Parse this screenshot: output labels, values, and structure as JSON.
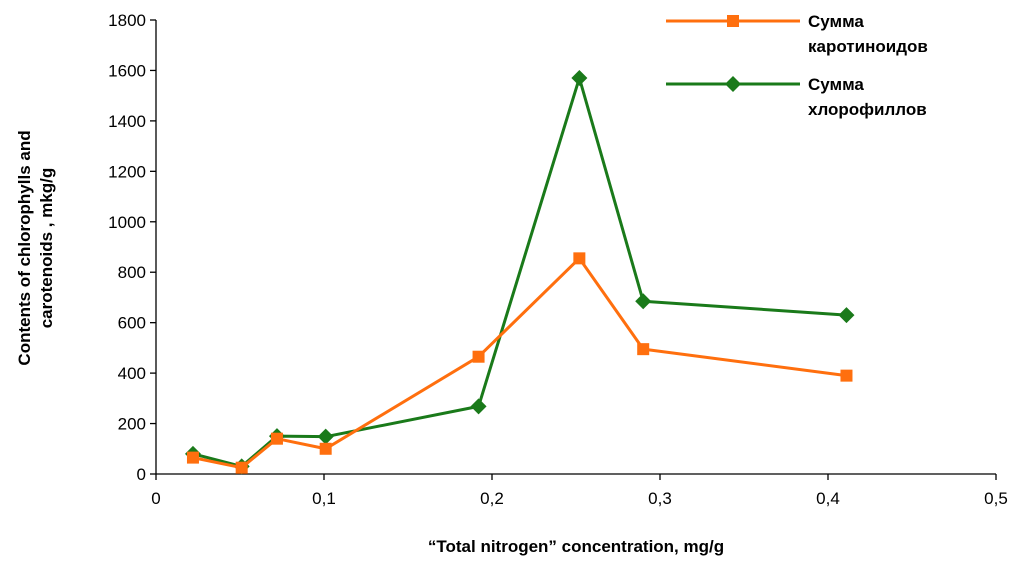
{
  "chart_data": {
    "type": "line",
    "xlabel": "“Total nitrogen” concentration, mg/g",
    "ylabel_lines": [
      "Contents of chlorophylls and",
      "carotenoids , mkg/g"
    ],
    "xlim": [
      0,
      0.5
    ],
    "ylim": [
      0,
      1800
    ],
    "x_ticks": [
      0,
      0.1,
      0.2,
      0.3,
      0.4,
      0.5
    ],
    "x_tick_labels": [
      "0",
      "0,1",
      "0,2",
      "0,3",
      "0,4",
      "0,5"
    ],
    "y_ticks": [
      0,
      200,
      400,
      600,
      800,
      1000,
      1200,
      1400,
      1600,
      1800
    ],
    "y_tick_labels": [
      "0",
      "200",
      "400",
      "600",
      "800",
      "1000",
      "1200",
      "1400",
      "1600",
      "1800"
    ],
    "grid": false,
    "legend_position": "top-right",
    "series": [
      {
        "name_lines": [
          "Сумма",
          "каротиноидов"
        ],
        "color": "#ff6f0e",
        "marker": "square",
        "points": [
          [
            0.022,
            65
          ],
          [
            0.051,
            25
          ],
          [
            0.072,
            140
          ],
          [
            0.101,
            100
          ],
          [
            0.192,
            465
          ],
          [
            0.252,
            855
          ],
          [
            0.29,
            495
          ],
          [
            0.411,
            390
          ]
        ]
      },
      {
        "name_lines": [
          "Сумма",
          "хлорофиллов"
        ],
        "color": "#1a7a1a",
        "marker": "diamond",
        "points": [
          [
            0.022,
            80
          ],
          [
            0.051,
            30
          ],
          [
            0.072,
            150
          ],
          [
            0.101,
            148
          ],
          [
            0.192,
            268
          ],
          [
            0.252,
            1570
          ],
          [
            0.29,
            685
          ],
          [
            0.411,
            630
          ]
        ]
      }
    ]
  }
}
